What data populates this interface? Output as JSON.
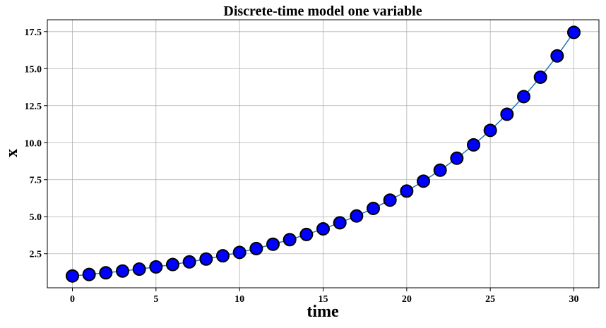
{
  "chart_data": {
    "type": "line",
    "title": "Discrete-time model one variable",
    "xlabel": "time",
    "ylabel": "x",
    "xlim": [
      -1.5,
      31.5
    ],
    "ylim": [
      0.2,
      18.3
    ],
    "xticks": [
      0,
      5,
      10,
      15,
      20,
      25,
      30
    ],
    "xtick_labels": [
      "0",
      "5",
      "10",
      "15",
      "20",
      "25",
      "30"
    ],
    "yticks": [
      2.5,
      5.0,
      7.5,
      10.0,
      12.5,
      15.0,
      17.5
    ],
    "ytick_labels": [
      "2.5",
      "5.0",
      "7.5",
      "10.0",
      "12.5",
      "15.0",
      "17.5"
    ],
    "grid": true,
    "series": [
      {
        "line_color": "#1f77b4",
        "marker_color": "#0000ff",
        "marker_edge_color": "#000000",
        "x": [
          0,
          1,
          2,
          3,
          4,
          5,
          6,
          7,
          8,
          9,
          10,
          11,
          12,
          13,
          14,
          15,
          16,
          17,
          18,
          19,
          20,
          21,
          22,
          23,
          24,
          25,
          26,
          27,
          28,
          29,
          30
        ],
        "y": [
          1.0,
          1.1,
          1.21,
          1.33,
          1.46,
          1.61,
          1.77,
          1.95,
          2.14,
          2.36,
          2.59,
          2.85,
          3.14,
          3.45,
          3.8,
          4.18,
          4.59,
          5.05,
          5.56,
          6.12,
          6.73,
          7.4,
          8.14,
          8.95,
          9.85,
          10.83,
          11.92,
          13.11,
          14.42,
          15.86,
          17.45
        ]
      }
    ]
  }
}
